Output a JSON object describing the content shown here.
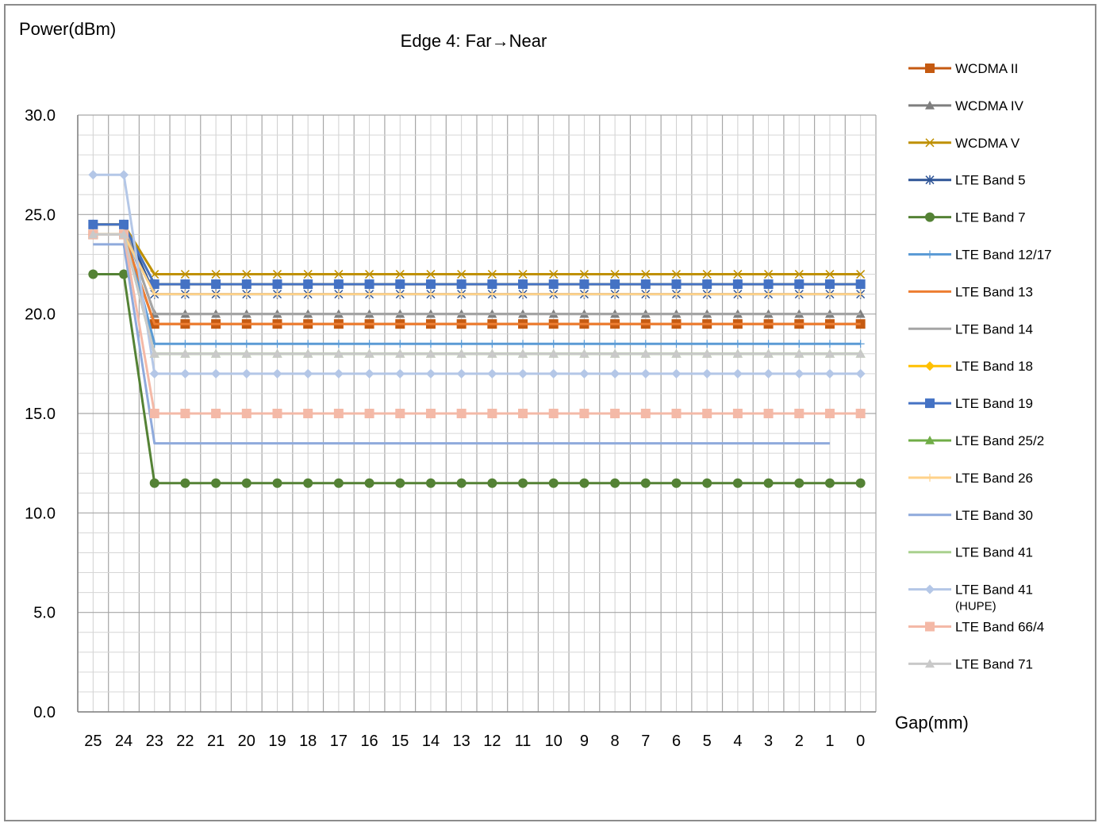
{
  "chart_data": {
    "type": "line",
    "title": "Edge 4: Far→Near",
    "ylabel": "Power(dBm)",
    "xlabel": "Gap(mm)",
    "ylim": [
      0,
      30
    ],
    "yticks": [
      "0.0",
      "5.0",
      "10.0",
      "15.0",
      "20.0",
      "25.0",
      "30.0"
    ],
    "grid": true,
    "legend_position": "right",
    "categories": [
      "25",
      "24",
      "23",
      "22",
      "21",
      "20",
      "19",
      "18",
      "17",
      "16",
      "15",
      "14",
      "13",
      "12",
      "11",
      "10",
      "9",
      "8",
      "7",
      "6",
      "5",
      "4",
      "3",
      "2",
      "1",
      "0"
    ],
    "series": [
      {
        "name": "WCDMA II",
        "color": "#c55a11",
        "marker": "square",
        "values": [
          24.0,
          24.0,
          19.5,
          19.5,
          19.5,
          19.5,
          19.5,
          19.5,
          19.5,
          19.5,
          19.5,
          19.5,
          19.5,
          19.5,
          19.5,
          19.5,
          19.5,
          19.5,
          19.5,
          19.5,
          19.5,
          19.5,
          19.5,
          19.5,
          19.5,
          19.5
        ]
      },
      {
        "name": "WCDMA IV",
        "color": "#7f7f7f",
        "marker": "triangle",
        "values": [
          24.5,
          24.5,
          20.0,
          20.0,
          20.0,
          20.0,
          20.0,
          20.0,
          20.0,
          20.0,
          20.0,
          20.0,
          20.0,
          20.0,
          20.0,
          20.0,
          20.0,
          20.0,
          20.0,
          20.0,
          20.0,
          20.0,
          20.0,
          20.0,
          20.0,
          20.0
        ]
      },
      {
        "name": "WCDMA V",
        "color": "#bf9000",
        "marker": "x",
        "values": [
          24.5,
          24.5,
          22.0,
          22.0,
          22.0,
          22.0,
          22.0,
          22.0,
          22.0,
          22.0,
          22.0,
          22.0,
          22.0,
          22.0,
          22.0,
          22.0,
          22.0,
          22.0,
          22.0,
          22.0,
          22.0,
          22.0,
          22.0,
          22.0,
          22.0,
          22.0
        ]
      },
      {
        "name": "LTE Band 5",
        "color": "#2f5597",
        "marker": "star",
        "values": [
          24.5,
          24.5,
          21.0,
          21.0,
          21.0,
          21.0,
          21.0,
          21.0,
          21.0,
          21.0,
          21.0,
          21.0,
          21.0,
          21.0,
          21.0,
          21.0,
          21.0,
          21.0,
          21.0,
          21.0,
          21.0,
          21.0,
          21.0,
          21.0,
          21.0,
          21.0
        ]
      },
      {
        "name": "LTE Band 7",
        "color": "#548235",
        "marker": "circle",
        "values": [
          22.0,
          22.0,
          11.5,
          11.5,
          11.5,
          11.5,
          11.5,
          11.5,
          11.5,
          11.5,
          11.5,
          11.5,
          11.5,
          11.5,
          11.5,
          11.5,
          11.5,
          11.5,
          11.5,
          11.5,
          11.5,
          11.5,
          11.5,
          11.5,
          11.5,
          11.5
        ]
      },
      {
        "name": "LTE Band 12/17",
        "color": "#5b9bd5",
        "marker": "plus",
        "values": [
          24.5,
          24.5,
          18.5,
          18.5,
          18.5,
          18.5,
          18.5,
          18.5,
          18.5,
          18.5,
          18.5,
          18.5,
          18.5,
          18.5,
          18.5,
          18.5,
          18.5,
          18.5,
          18.5,
          18.5,
          18.5,
          18.5,
          18.5,
          18.5,
          18.5,
          18.5
        ]
      },
      {
        "name": "LTE Band 13",
        "color": "#ed7d31",
        "marker": "none",
        "values": [
          24.0,
          24.0,
          19.5,
          19.5,
          19.5,
          19.5,
          19.5,
          19.5,
          19.5,
          19.5,
          19.5,
          19.5,
          19.5,
          19.5,
          19.5,
          19.5,
          19.5,
          19.5,
          19.5,
          19.5,
          19.5,
          19.5,
          19.5,
          19.5,
          19.5,
          19.5
        ]
      },
      {
        "name": "LTE Band 14",
        "color": "#a5a5a5",
        "marker": "none",
        "values": [
          24.5,
          24.5,
          20.0,
          20.0,
          20.0,
          20.0,
          20.0,
          20.0,
          20.0,
          20.0,
          20.0,
          20.0,
          20.0,
          20.0,
          20.0,
          20.0,
          20.0,
          20.0,
          20.0,
          20.0,
          20.0,
          20.0,
          20.0,
          20.0,
          20.0,
          20.0
        ]
      },
      {
        "name": "LTE Band 18",
        "color": "#ffc000",
        "marker": "diamond",
        "values": [
          24.5,
          24.5,
          21.5,
          21.5,
          21.5,
          21.5,
          21.5,
          21.5,
          21.5,
          21.5,
          21.5,
          21.5,
          21.5,
          21.5,
          21.5,
          21.5,
          21.5,
          21.5,
          21.5,
          21.5,
          21.5,
          21.5,
          21.5,
          21.5,
          21.5,
          21.5
        ]
      },
      {
        "name": "LTE Band 19",
        "color": "#4472c4",
        "marker": "square",
        "values": [
          24.5,
          24.5,
          21.5,
          21.5,
          21.5,
          21.5,
          21.5,
          21.5,
          21.5,
          21.5,
          21.5,
          21.5,
          21.5,
          21.5,
          21.5,
          21.5,
          21.5,
          21.5,
          21.5,
          21.5,
          21.5,
          21.5,
          21.5,
          21.5,
          21.5,
          21.5
        ]
      },
      {
        "name": "LTE Band 25/2",
        "color": "#70ad47",
        "marker": "triangle",
        "values": [
          24.0,
          24.0,
          18.0,
          18.0,
          18.0,
          18.0,
          18.0,
          18.0,
          18.0,
          18.0,
          18.0,
          18.0,
          18.0,
          18.0,
          18.0,
          18.0,
          18.0,
          18.0,
          18.0,
          18.0,
          18.0,
          18.0,
          18.0,
          18.0,
          18.0,
          18.0
        ]
      },
      {
        "name": "LTE Band 26",
        "color": "#ffd28a",
        "marker": "plus",
        "values": [
          24.0,
          24.0,
          21.0,
          21.0,
          21.0,
          21.0,
          21.0,
          21.0,
          21.0,
          21.0,
          21.0,
          21.0,
          21.0,
          21.0,
          21.0,
          21.0,
          21.0,
          21.0,
          21.0,
          21.0,
          21.0,
          21.0,
          21.0,
          21.0,
          21.0,
          21.0
        ]
      },
      {
        "name": "LTE Band 30",
        "color": "#8faadc",
        "marker": "none",
        "values": [
          23.5,
          23.5,
          13.5,
          13.5,
          13.5,
          13.5,
          13.5,
          13.5,
          13.5,
          13.5,
          13.5,
          13.5,
          13.5,
          13.5,
          13.5,
          13.5,
          13.5,
          13.5,
          13.5,
          13.5,
          13.5,
          13.5,
          13.5,
          13.5,
          13.5,
          null
        ]
      },
      {
        "name": "LTE Band 41",
        "color": "#a9d18e",
        "marker": "none",
        "values": [
          24.0,
          24.0,
          18.0,
          18.0,
          18.0,
          18.0,
          18.0,
          18.0,
          18.0,
          18.0,
          18.0,
          18.0,
          18.0,
          18.0,
          18.0,
          18.0,
          18.0,
          18.0,
          18.0,
          18.0,
          18.0,
          18.0,
          18.0,
          18.0,
          18.0,
          18.0
        ]
      },
      {
        "name": "LTE Band 41 (HUPE)",
        "color": "#b4c7e7",
        "marker": "diamond",
        "values": [
          27.0,
          27.0,
          17.0,
          17.0,
          17.0,
          17.0,
          17.0,
          17.0,
          17.0,
          17.0,
          17.0,
          17.0,
          17.0,
          17.0,
          17.0,
          17.0,
          17.0,
          17.0,
          17.0,
          17.0,
          17.0,
          17.0,
          17.0,
          17.0,
          17.0,
          17.0
        ]
      },
      {
        "name": "LTE Band 66/4",
        "color": "#f4b9a7",
        "marker": "square",
        "values": [
          24.0,
          24.0,
          15.0,
          15.0,
          15.0,
          15.0,
          15.0,
          15.0,
          15.0,
          15.0,
          15.0,
          15.0,
          15.0,
          15.0,
          15.0,
          15.0,
          15.0,
          15.0,
          15.0,
          15.0,
          15.0,
          15.0,
          15.0,
          15.0,
          15.0,
          15.0
        ]
      },
      {
        "name": "LTE Band 71",
        "color": "#c9c9c9",
        "marker": "triangle",
        "values": [
          24.0,
          24.0,
          18.0,
          18.0,
          18.0,
          18.0,
          18.0,
          18.0,
          18.0,
          18.0,
          18.0,
          18.0,
          18.0,
          18.0,
          18.0,
          18.0,
          18.0,
          18.0,
          18.0,
          18.0,
          18.0,
          18.0,
          18.0,
          18.0,
          18.0,
          18.0
        ]
      }
    ]
  }
}
